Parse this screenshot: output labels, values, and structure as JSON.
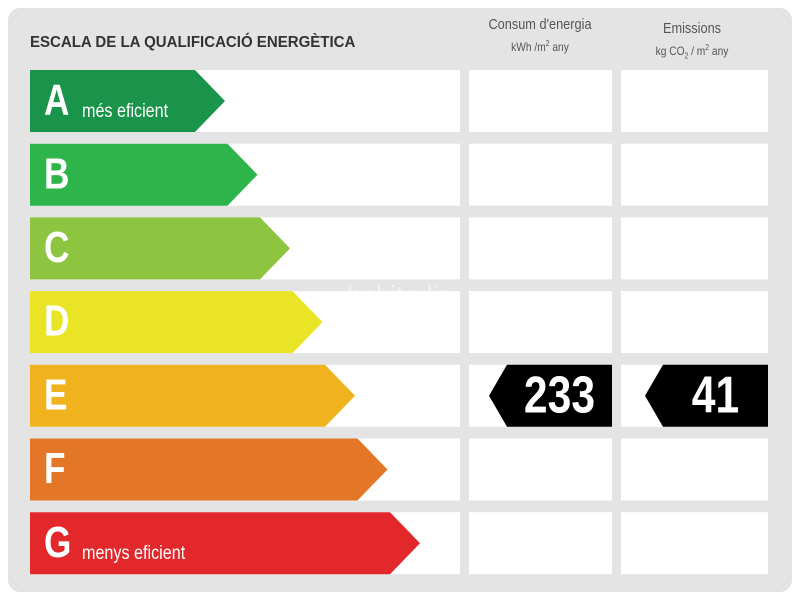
{
  "header": {
    "title": "ESCALA DE LA QUALIFICACIÓ ENERGÈTICA",
    "columns": [
      {
        "name": "Consum d'energia",
        "unit": [
          "kWh /m",
          "2",
          " any"
        ]
      },
      {
        "name": "Emissions",
        "unit": [
          "kg CO",
          "2",
          " / m",
          "2",
          " any"
        ]
      }
    ]
  },
  "rows": [
    {
      "letter": "A",
      "label": "més eficient",
      "color": "#19944a"
    },
    {
      "letter": "B",
      "color": "#2db54b"
    },
    {
      "letter": "C",
      "color": "#8dc540"
    },
    {
      "letter": "D",
      "color": "#e9e425"
    },
    {
      "letter": "E",
      "color": "#f0b31d",
      "consumption": 233,
      "emissions": 41
    },
    {
      "letter": "F",
      "color": "#e47727"
    },
    {
      "letter": "G",
      "label": "menys eficient",
      "color": "#e2282b"
    }
  ],
  "watermark": "habitadia"
}
